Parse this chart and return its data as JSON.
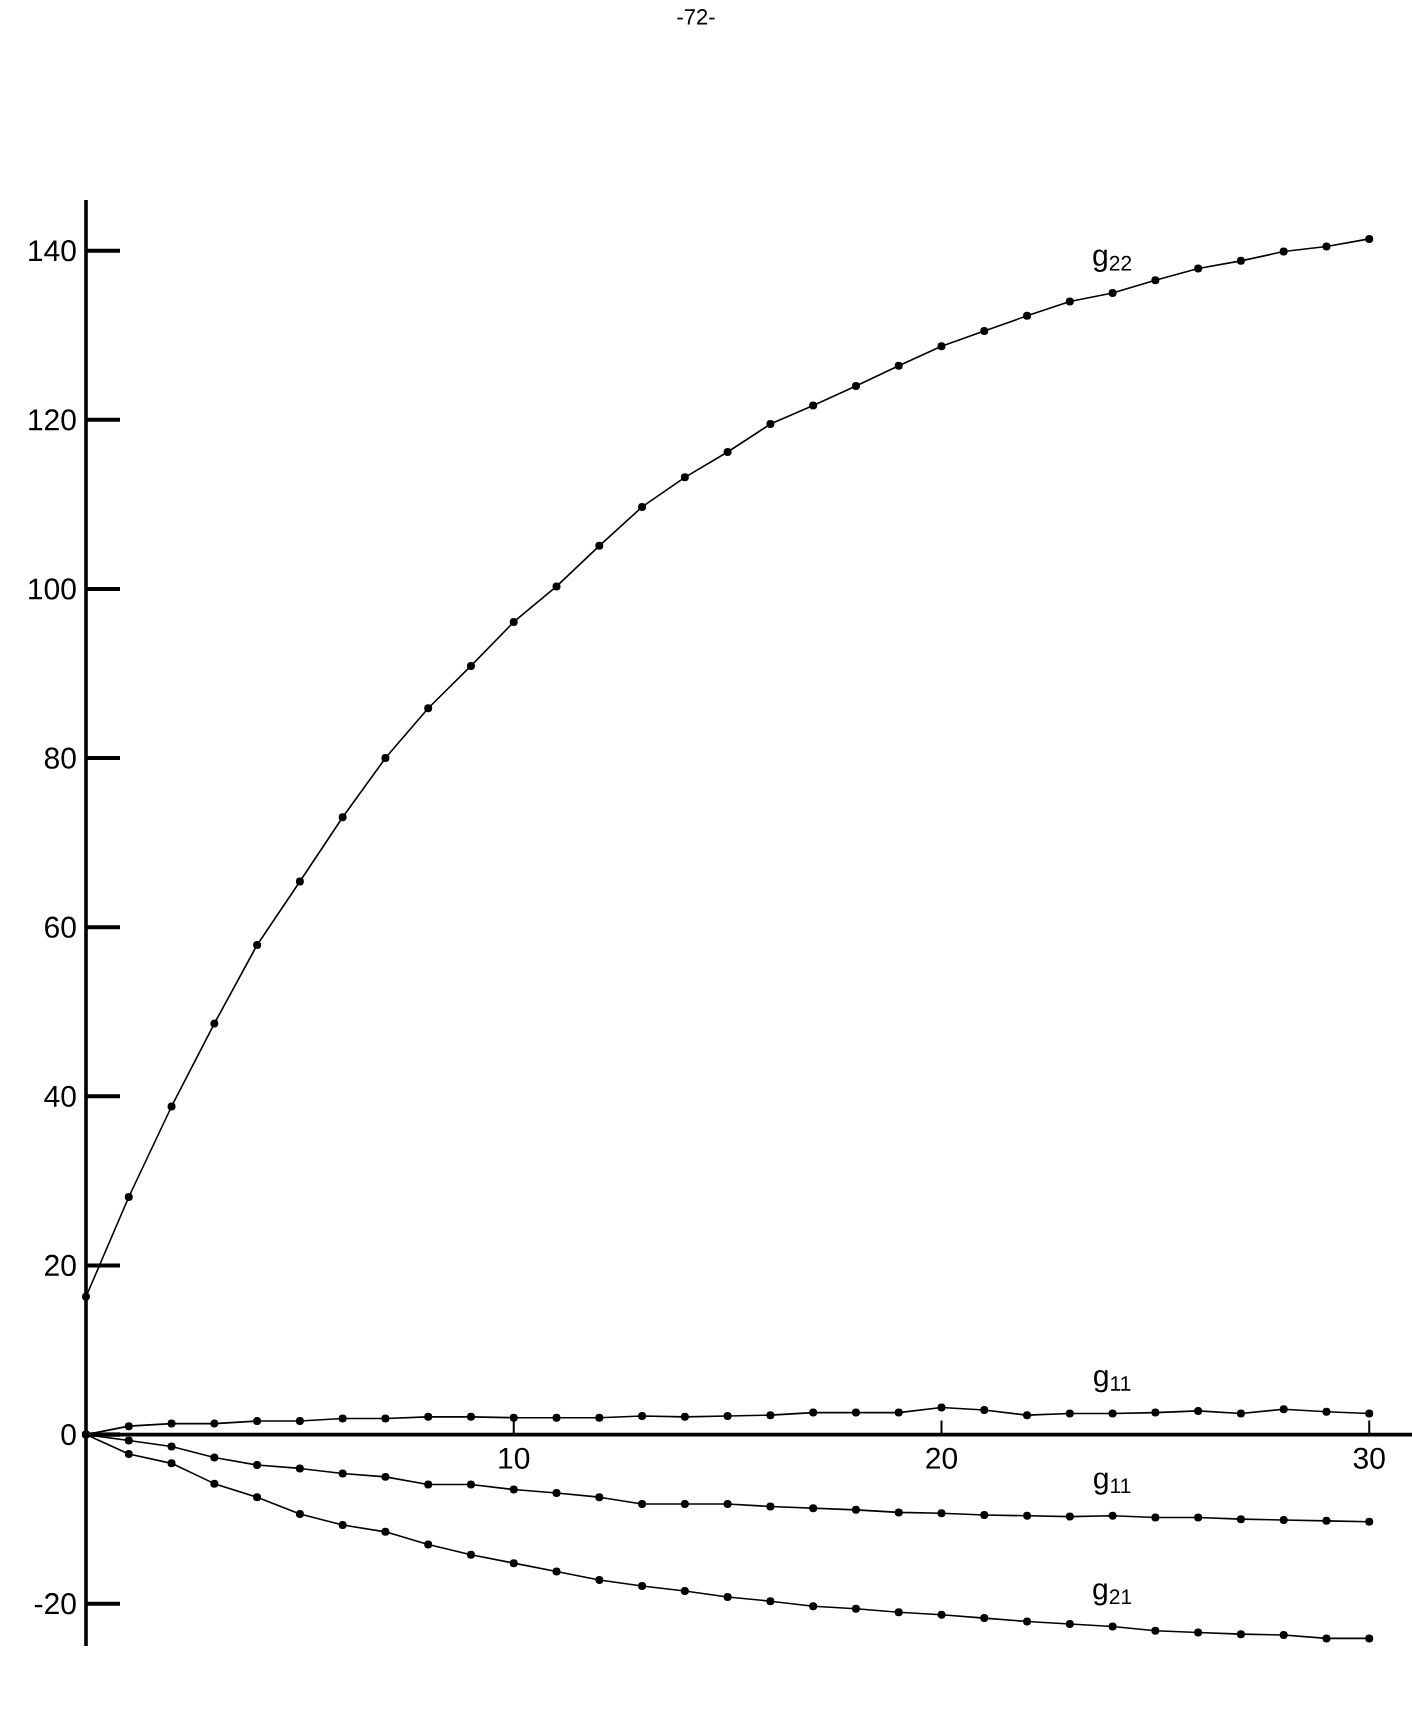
{
  "chart_data": {
    "type": "line",
    "marker": "circle",
    "line_style": "solid",
    "annotations": [
      "-72-"
    ],
    "x": [
      0,
      1,
      2,
      3,
      4,
      5,
      6,
      7,
      8,
      9,
      10,
      11,
      12,
      13,
      14,
      15,
      16,
      17,
      18,
      19,
      20,
      21,
      22,
      23,
      24,
      25,
      26,
      27,
      28,
      29,
      30
    ],
    "xlim": [
      0,
      31
    ],
    "ylim": [
      -25,
      146
    ],
    "xticks": [
      10,
      20,
      30
    ],
    "yticks": [
      -20,
      0,
      20,
      40,
      60,
      80,
      100,
      120,
      140
    ],
    "series": [
      {
        "name": "g$_{22}$",
        "color": "#000000",
        "values": [
          16.3,
          28.1,
          38.8,
          48.6,
          57.9,
          65.4,
          73.0,
          80.0,
          85.9,
          90.9,
          96.1,
          100.3,
          105.1,
          109.7,
          113.2,
          116.2,
          119.5,
          121.7,
          124.0,
          126.4,
          128.7,
          130.5,
          132.3,
          134.0,
          135.0,
          136.5,
          137.9,
          138.8,
          139.9,
          140.5,
          141.4
        ]
      },
      {
        "name": "g$_{11}$",
        "color": "#000000",
        "values": [
          0,
          1.0,
          1.3,
          1.3,
          1.6,
          1.6,
          1.9,
          1.9,
          2.1,
          2.1,
          2.0,
          2.0,
          2.0,
          2.2,
          2.1,
          2.2,
          2.3,
          2.6,
          2.6,
          2.6,
          3.2,
          2.9,
          2.3,
          2.5,
          2.5,
          2.6,
          2.8,
          2.5,
          3.0,
          2.7,
          2.5
        ]
      },
      {
        "name": "g$_{11}$",
        "color": "#000000",
        "values": [
          0,
          -0.7,
          -1.4,
          -2.7,
          -3.6,
          -4.0,
          -4.6,
          -5.0,
          -5.9,
          -5.9,
          -6.5,
          -6.9,
          -7.4,
          -8.2,
          -8.2,
          -8.2,
          -8.5,
          -8.7,
          -8.9,
          -9.2,
          -9.3,
          -9.5,
          -9.6,
          -9.7,
          -9.6,
          -9.8,
          -9.8,
          -10.0,
          -10.1,
          -10.2,
          -10.3
        ]
      },
      {
        "name": "g$_{21}$",
        "color": "#000000",
        "values": [
          0,
          -2.3,
          -3.4,
          -5.8,
          -7.4,
          -9.4,
          -10.7,
          -11.5,
          -13.0,
          -14.2,
          -15.2,
          -16.2,
          -17.2,
          -17.9,
          -18.5,
          -19.2,
          -19.7,
          -20.3,
          -20.6,
          -21.0,
          -21.3,
          -21.7,
          -22.1,
          -22.4,
          -22.7,
          -23.2,
          -23.4,
          -23.6,
          -23.7,
          -24.1,
          -24.1
        ]
      }
    ]
  }
}
